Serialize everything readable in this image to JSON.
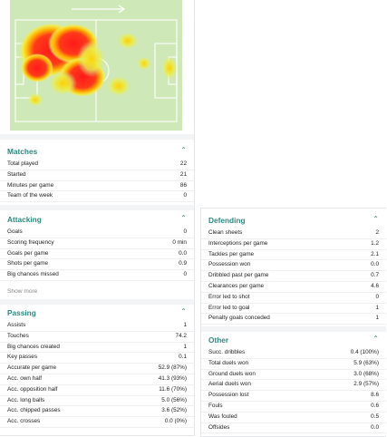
{
  "colors": {
    "accent": "#2a8a7e",
    "pitch": "#cfe8b8",
    "heat_hot": "#ff2020",
    "heat_mid": "#ffd200"
  },
  "heatmap": {
    "arrow": "→",
    "icon": "heatmap-pitch"
  },
  "matches": {
    "title": "Matches",
    "rows": [
      {
        "label": "Total played",
        "value": "22"
      },
      {
        "label": "Started",
        "value": "21"
      },
      {
        "label": "Minutes per game",
        "value": "86"
      },
      {
        "label": "Team of the week",
        "value": "0"
      }
    ]
  },
  "attacking": {
    "title": "Attacking",
    "rows": [
      {
        "label": "Goals",
        "value": "0"
      },
      {
        "label": "Scoring frequency",
        "value": "0 min"
      },
      {
        "label": "Goals per game",
        "value": "0.0"
      },
      {
        "label": "Shots per game",
        "value": "0.9"
      },
      {
        "label": "Big chances missed",
        "value": "0"
      }
    ],
    "show_more": "Show more"
  },
  "passing": {
    "title": "Passing",
    "rows": [
      {
        "label": "Assists",
        "value": "1"
      },
      {
        "label": "Touches",
        "value": "74.2"
      },
      {
        "label": "Big chances created",
        "value": "1"
      },
      {
        "label": "Key passes",
        "value": "0.1"
      },
      {
        "label": "Accurate per game",
        "value": "52.9 (87%)"
      },
      {
        "label": "Acc. own half",
        "value": "41.3 (93%)"
      },
      {
        "label": "Acc. opposition half",
        "value": "11.6 (70%)"
      },
      {
        "label": "Acc. long balls",
        "value": "5.0 (56%)"
      },
      {
        "label": "Acc. chipped passes",
        "value": "3.6 (52%)"
      },
      {
        "label": "Acc. crosses",
        "value": "0.0 (0%)"
      }
    ]
  },
  "defending": {
    "title": "Defending",
    "rows": [
      {
        "label": "Clean sheets",
        "value": "2"
      },
      {
        "label": "Interceptions per game",
        "value": "1.2"
      },
      {
        "label": "Tackles per game",
        "value": "2.1"
      },
      {
        "label": "Possession won",
        "value": "0.0"
      },
      {
        "label": "Dribbled past per game",
        "value": "0.7"
      },
      {
        "label": "Clearances per game",
        "value": "4.6"
      },
      {
        "label": "Error led to shot",
        "value": "0"
      },
      {
        "label": "Error led to goal",
        "value": "1"
      },
      {
        "label": "Penalty goals conceded",
        "value": "1"
      }
    ]
  },
  "other": {
    "title": "Other",
    "rows": [
      {
        "label": "Succ. dribbles",
        "value": "0.4 (100%)"
      },
      {
        "label": "Total duels won",
        "value": "5.9 (63%)"
      },
      {
        "label": "Ground duels won",
        "value": "3.0 (68%)"
      },
      {
        "label": "Aerial duels won",
        "value": "2.9 (57%)"
      },
      {
        "label": "Possession lost",
        "value": "8.6"
      },
      {
        "label": "Fouls",
        "value": "0.6"
      },
      {
        "label": "Was fouled",
        "value": "0.5"
      },
      {
        "label": "Offsides",
        "value": "0.0"
      }
    ]
  }
}
